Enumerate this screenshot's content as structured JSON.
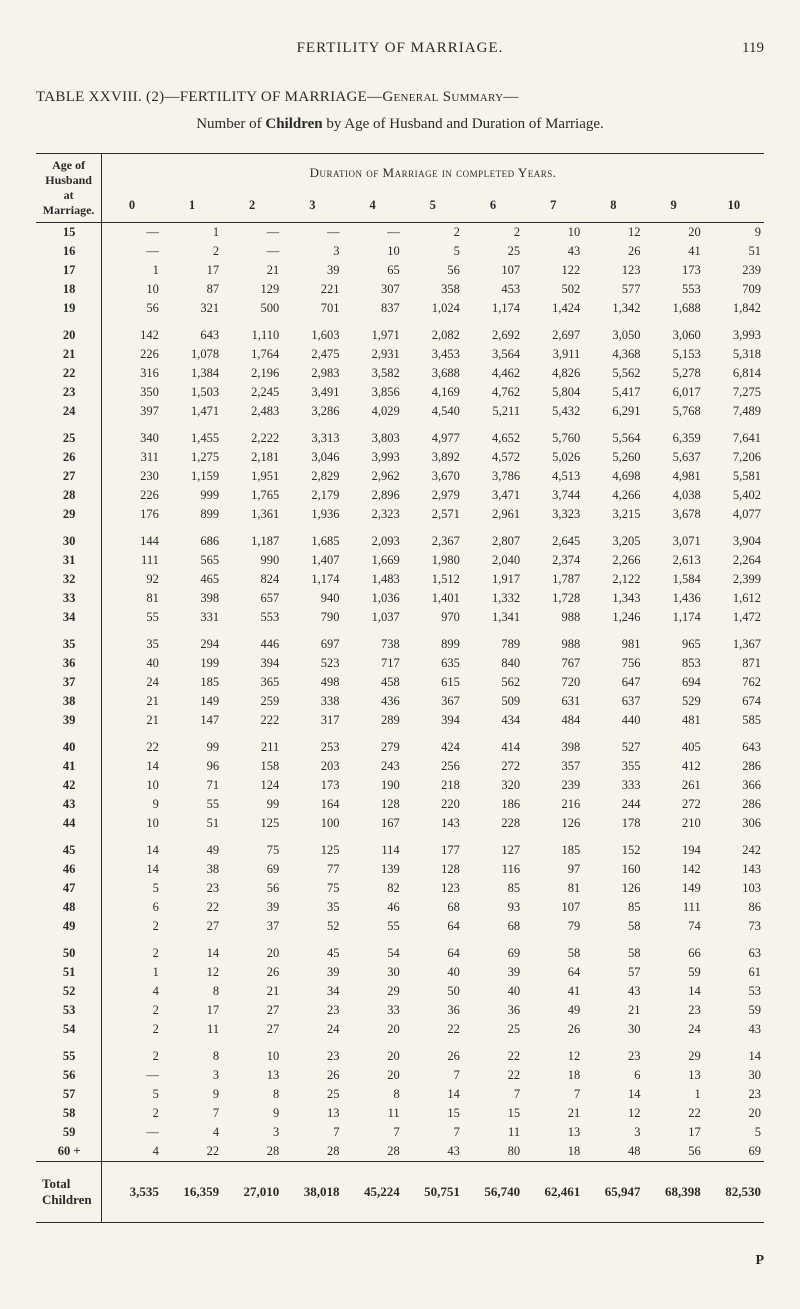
{
  "page": {
    "running_title": "FERTILITY OF MARRIAGE.",
    "page_number": "119",
    "main_title": "TABLE  XXVIII. (2)—FERTILITY  OF  MARRIAGE—General  Summary—",
    "sub_title_prefix": "Number of ",
    "sub_title_bold": "Children",
    "sub_title_suffix": " by Age of Husband and Duration of Marriage.",
    "footer_sig": "P"
  },
  "table": {
    "super_header": "Duration of Marriage in completed Years.",
    "age_header_l1": "Age of",
    "age_header_l2": "Husband",
    "age_header_l3": "at",
    "age_header_l4": "Marriage.",
    "col_headers": [
      "0",
      "1",
      "2",
      "3",
      "4",
      "5",
      "6",
      "7",
      "8",
      "9",
      "10"
    ],
    "row_groups": [
      [
        {
          "age": "15",
          "v": [
            "—",
            "1",
            "—",
            "—",
            "—",
            "2",
            "2",
            "10",
            "12",
            "20",
            "9"
          ]
        },
        {
          "age": "16",
          "v": [
            "—",
            "2",
            "—",
            "3",
            "10",
            "5",
            "25",
            "43",
            "26",
            "41",
            "51"
          ]
        },
        {
          "age": "17",
          "v": [
            "1",
            "17",
            "21",
            "39",
            "65",
            "56",
            "107",
            "122",
            "123",
            "173",
            "239"
          ]
        },
        {
          "age": "18",
          "v": [
            "10",
            "87",
            "129",
            "221",
            "307",
            "358",
            "453",
            "502",
            "577",
            "553",
            "709"
          ]
        },
        {
          "age": "19",
          "v": [
            "56",
            "321",
            "500",
            "701",
            "837",
            "1,024",
            "1,174",
            "1,424",
            "1,342",
            "1,688",
            "1,842"
          ]
        }
      ],
      [
        {
          "age": "20",
          "v": [
            "142",
            "643",
            "1,110",
            "1,603",
            "1,971",
            "2,082",
            "2,692",
            "2,697",
            "3,050",
            "3,060",
            "3,993"
          ]
        },
        {
          "age": "21",
          "v": [
            "226",
            "1,078",
            "1,764",
            "2,475",
            "2,931",
            "3,453",
            "3,564",
            "3,911",
            "4,368",
            "5,153",
            "5,318"
          ]
        },
        {
          "age": "22",
          "v": [
            "316",
            "1,384",
            "2,196",
            "2,983",
            "3,582",
            "3,688",
            "4,462",
            "4,826",
            "5,562",
            "5,278",
            "6,814"
          ]
        },
        {
          "age": "23",
          "v": [
            "350",
            "1,503",
            "2,245",
            "3,491",
            "3,856",
            "4,169",
            "4,762",
            "5,804",
            "5,417",
            "6,017",
            "7,275"
          ]
        },
        {
          "age": "24",
          "v": [
            "397",
            "1,471",
            "2,483",
            "3,286",
            "4,029",
            "4,540",
            "5,211",
            "5,432",
            "6,291",
            "5,768",
            "7,489"
          ]
        }
      ],
      [
        {
          "age": "25",
          "v": [
            "340",
            "1,455",
            "2,222",
            "3,313",
            "3,803",
            "4,977",
            "4,652",
            "5,760",
            "5,564",
            "6,359",
            "7,641"
          ]
        },
        {
          "age": "26",
          "v": [
            "311",
            "1,275",
            "2,181",
            "3,046",
            "3,993",
            "3,892",
            "4,572",
            "5,026",
            "5,260",
            "5,637",
            "7,206"
          ]
        },
        {
          "age": "27",
          "v": [
            "230",
            "1,159",
            "1,951",
            "2,829",
            "2,962",
            "3,670",
            "3,786",
            "4,513",
            "4,698",
            "4,981",
            "5,581"
          ]
        },
        {
          "age": "28",
          "v": [
            "226",
            "999",
            "1,765",
            "2,179",
            "2,896",
            "2,979",
            "3,471",
            "3,744",
            "4,266",
            "4,038",
            "5,402"
          ]
        },
        {
          "age": "29",
          "v": [
            "176",
            "899",
            "1,361",
            "1,936",
            "2,323",
            "2,571",
            "2,961",
            "3,323",
            "3,215",
            "3,678",
            "4,077"
          ]
        }
      ],
      [
        {
          "age": "30",
          "v": [
            "144",
            "686",
            "1,187",
            "1,685",
            "2,093",
            "2,367",
            "2,807",
            "2,645",
            "3,205",
            "3,071",
            "3,904"
          ]
        },
        {
          "age": "31",
          "v": [
            "111",
            "565",
            "990",
            "1,407",
            "1,669",
            "1,980",
            "2,040",
            "2,374",
            "2,266",
            "2,613",
            "2,264"
          ]
        },
        {
          "age": "32",
          "v": [
            "92",
            "465",
            "824",
            "1,174",
            "1,483",
            "1,512",
            "1,917",
            "1,787",
            "2,122",
            "1,584",
            "2,399"
          ]
        },
        {
          "age": "33",
          "v": [
            "81",
            "398",
            "657",
            "940",
            "1,036",
            "1,401",
            "1,332",
            "1,728",
            "1,343",
            "1,436",
            "1,612"
          ]
        },
        {
          "age": "34",
          "v": [
            "55",
            "331",
            "553",
            "790",
            "1,037",
            "970",
            "1,341",
            "988",
            "1,246",
            "1,174",
            "1,472"
          ]
        }
      ],
      [
        {
          "age": "35",
          "v": [
            "35",
            "294",
            "446",
            "697",
            "738",
            "899",
            "789",
            "988",
            "981",
            "965",
            "1,367"
          ]
        },
        {
          "age": "36",
          "v": [
            "40",
            "199",
            "394",
            "523",
            "717",
            "635",
            "840",
            "767",
            "756",
            "853",
            "871"
          ]
        },
        {
          "age": "37",
          "v": [
            "24",
            "185",
            "365",
            "498",
            "458",
            "615",
            "562",
            "720",
            "647",
            "694",
            "762"
          ]
        },
        {
          "age": "38",
          "v": [
            "21",
            "149",
            "259",
            "338",
            "436",
            "367",
            "509",
            "631",
            "637",
            "529",
            "674"
          ]
        },
        {
          "age": "39",
          "v": [
            "21",
            "147",
            "222",
            "317",
            "289",
            "394",
            "434",
            "484",
            "440",
            "481",
            "585"
          ]
        }
      ],
      [
        {
          "age": "40",
          "v": [
            "22",
            "99",
            "211",
            "253",
            "279",
            "424",
            "414",
            "398",
            "527",
            "405",
            "643"
          ]
        },
        {
          "age": "41",
          "v": [
            "14",
            "96",
            "158",
            "203",
            "243",
            "256",
            "272",
            "357",
            "355",
            "412",
            "286"
          ]
        },
        {
          "age": "42",
          "v": [
            "10",
            "71",
            "124",
            "173",
            "190",
            "218",
            "320",
            "239",
            "333",
            "261",
            "366"
          ]
        },
        {
          "age": "43",
          "v": [
            "9",
            "55",
            "99",
            "164",
            "128",
            "220",
            "186",
            "216",
            "244",
            "272",
            "286"
          ]
        },
        {
          "age": "44",
          "v": [
            "10",
            "51",
            "125",
            "100",
            "167",
            "143",
            "228",
            "126",
            "178",
            "210",
            "306"
          ]
        }
      ],
      [
        {
          "age": "45",
          "v": [
            "14",
            "49",
            "75",
            "125",
            "114",
            "177",
            "127",
            "185",
            "152",
            "194",
            "242"
          ]
        },
        {
          "age": "46",
          "v": [
            "14",
            "38",
            "69",
            "77",
            "139",
            "128",
            "116",
            "97",
            "160",
            "142",
            "143"
          ]
        },
        {
          "age": "47",
          "v": [
            "5",
            "23",
            "56",
            "75",
            "82",
            "123",
            "85",
            "81",
            "126",
            "149",
            "103"
          ]
        },
        {
          "age": "48",
          "v": [
            "6",
            "22",
            "39",
            "35",
            "46",
            "68",
            "93",
            "107",
            "85",
            "111",
            "86"
          ]
        },
        {
          "age": "49",
          "v": [
            "2",
            "27",
            "37",
            "52",
            "55",
            "64",
            "68",
            "79",
            "58",
            "74",
            "73"
          ]
        }
      ],
      [
        {
          "age": "50",
          "v": [
            "2",
            "14",
            "20",
            "45",
            "54",
            "64",
            "69",
            "58",
            "58",
            "66",
            "63"
          ]
        },
        {
          "age": "51",
          "v": [
            "1",
            "12",
            "26",
            "39",
            "30",
            "40",
            "39",
            "64",
            "57",
            "59",
            "61"
          ]
        },
        {
          "age": "52",
          "v": [
            "4",
            "8",
            "21",
            "34",
            "29",
            "50",
            "40",
            "41",
            "43",
            "14",
            "53"
          ]
        },
        {
          "age": "53",
          "v": [
            "2",
            "17",
            "27",
            "23",
            "33",
            "36",
            "36",
            "49",
            "21",
            "23",
            "59"
          ]
        },
        {
          "age": "54",
          "v": [
            "2",
            "11",
            "27",
            "24",
            "20",
            "22",
            "25",
            "26",
            "30",
            "24",
            "43"
          ]
        }
      ],
      [
        {
          "age": "55",
          "v": [
            "2",
            "8",
            "10",
            "23",
            "20",
            "26",
            "22",
            "12",
            "23",
            "29",
            "14"
          ]
        },
        {
          "age": "56",
          "v": [
            "—",
            "3",
            "13",
            "26",
            "20",
            "7",
            "22",
            "18",
            "6",
            "13",
            "30"
          ]
        },
        {
          "age": "57",
          "v": [
            "5",
            "9",
            "8",
            "25",
            "8",
            "14",
            "7",
            "7",
            "14",
            "1",
            "23"
          ]
        },
        {
          "age": "58",
          "v": [
            "2",
            "7",
            "9",
            "13",
            "11",
            "15",
            "15",
            "21",
            "12",
            "22",
            "20"
          ]
        },
        {
          "age": "59",
          "v": [
            "—",
            "4",
            "3",
            "7",
            "7",
            "7",
            "11",
            "13",
            "3",
            "17",
            "5"
          ]
        },
        {
          "age": "60 +",
          "v": [
            "4",
            "22",
            "28",
            "28",
            "28",
            "43",
            "80",
            "18",
            "48",
            "56",
            "69"
          ]
        }
      ]
    ],
    "total": {
      "label_l1": "Total",
      "label_l2": "Children",
      "v": [
        "3,535",
        "16,359",
        "27,010",
        "38,018",
        "45,224",
        "50,751",
        "56,740",
        "62,461",
        "65,947",
        "68,398",
        "82,530"
      ]
    }
  }
}
